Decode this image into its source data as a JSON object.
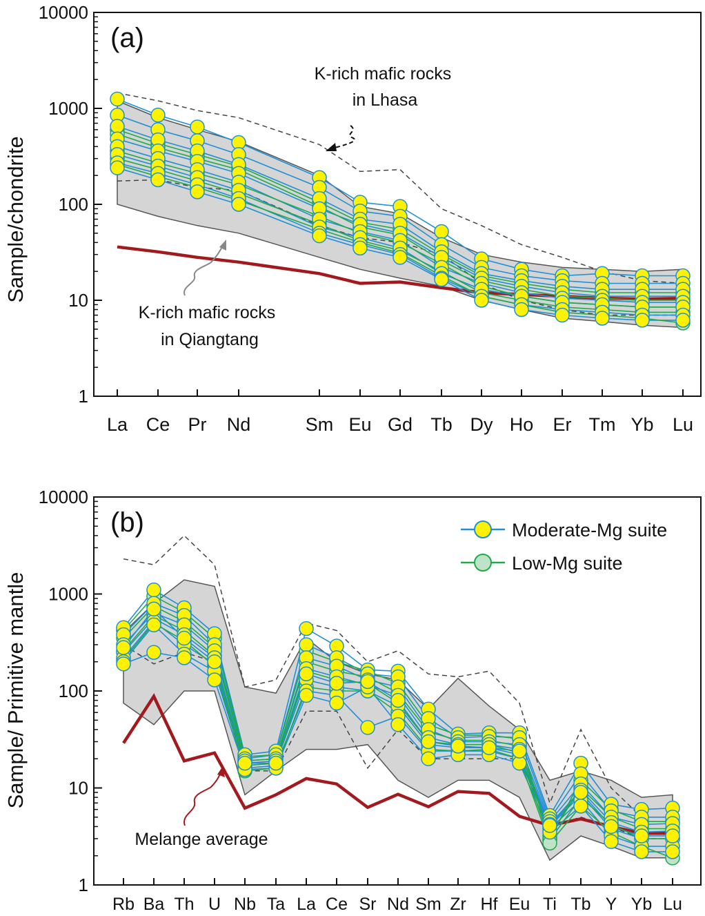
{
  "chart_data": [
    {
      "panel": "(a)",
      "type": "line",
      "scale": "log",
      "ylabel": "Sample/chondrite",
      "ylim": [
        1,
        10000
      ],
      "ytick_labels": [
        "1",
        "10",
        "100",
        "1000",
        "10000"
      ],
      "categories": [
        "La",
        "Ce",
        "Pr",
        "Nd",
        "Sm",
        "Eu",
        "Gd",
        "Tb",
        "Dy",
        "Ho",
        "Er",
        "Tm",
        "Yb",
        "Lu"
      ],
      "annotations": {
        "lhasa_line1": "K-rich mafic rocks",
        "lhasa_line2": "in Lhasa",
        "qiangtang_line1": "K-rich mafic rocks",
        "qiangtang_line2": "in Qiangtang"
      },
      "field_qiangtang": {
        "upper": [
          1200,
          800,
          600,
          450,
          200,
          95,
          80,
          45,
          30,
          25,
          22,
          21,
          20,
          21
        ],
        "lower": [
          100,
          75,
          60,
          50,
          28,
          21,
          17,
          14,
          10,
          8,
          6.5,
          6,
          5.5,
          5.2
        ]
      },
      "field_lhasa": {
        "upper": [
          1450,
          1200,
          950,
          800,
          420,
          220,
          230,
          90,
          60,
          38,
          28,
          20,
          16,
          15
        ],
        "lower": [
          175,
          180,
          150,
          140,
          60,
          45,
          40,
          30,
          15,
          10,
          8,
          7,
          7,
          7
        ]
      },
      "reference_line": [
        36,
        32,
        28,
        25,
        19,
        15,
        15.5,
        13.5,
        12,
        11.5,
        11,
        10.5,
        10.3,
        10.5
      ],
      "series": [
        {
          "suite": "Moderate-Mg",
          "values": [
            1250,
            850,
            640,
            440,
            190,
            105,
            95,
            52,
            27,
            21,
            18,
            19,
            18,
            18
          ]
        },
        {
          "suite": "Moderate-Mg",
          "values": [
            850,
            600,
            460,
            330,
            150,
            85,
            75,
            38,
            22,
            18,
            16,
            15,
            15,
            15
          ]
        },
        {
          "suite": "Moderate-Mg",
          "values": [
            650,
            470,
            360,
            260,
            115,
            70,
            62,
            32,
            19,
            16,
            14,
            13,
            13,
            13
          ]
        },
        {
          "suite": "Moderate-Mg",
          "values": [
            480,
            360,
            280,
            210,
            90,
            62,
            50,
            28,
            17,
            14,
            12,
            11,
            11,
            11
          ]
        },
        {
          "suite": "Moderate-Mg",
          "values": [
            400,
            300,
            230,
            170,
            70,
            52,
            42,
            22,
            15,
            12,
            10.5,
            10,
            9.5,
            9.5
          ]
        },
        {
          "suite": "Moderate-Mg",
          "values": [
            330,
            250,
            190,
            140,
            58,
            45,
            35,
            19,
            13,
            11,
            9.5,
            9,
            8.5,
            8.5
          ]
        },
        {
          "suite": "Moderate-Mg",
          "values": [
            270,
            210,
            160,
            115,
            50,
            38,
            30,
            17,
            11,
            9,
            8,
            7.5,
            7,
            7
          ]
        },
        {
          "suite": "Moderate-Mg",
          "values": [
            240,
            180,
            135,
            100,
            47,
            35,
            28,
            16.5,
            10,
            8,
            7,
            6.5,
            6.2,
            6.2
          ]
        },
        {
          "suite": "Low-Mg",
          "values": [
            600,
            430,
            330,
            250,
            105,
            65,
            55,
            30,
            18,
            15,
            13,
            12,
            12,
            12
          ]
        },
        {
          "suite": "Low-Mg",
          "values": [
            540,
            390,
            300,
            230,
            95,
            58,
            48,
            26,
            16,
            13,
            11,
            10.5,
            10,
            10
          ]
        },
        {
          "suite": "Low-Mg",
          "values": [
            360,
            270,
            210,
            160,
            75,
            50,
            40,
            24,
            14,
            11,
            9.5,
            9,
            8.5,
            8.5
          ]
        },
        {
          "suite": "Low-Mg",
          "values": [
            300,
            230,
            175,
            130,
            62,
            42,
            33,
            20,
            12,
            10,
            8.5,
            8,
            7.5,
            7.5
          ]
        },
        {
          "suite": "Low-Mg",
          "values": [
            260,
            195,
            150,
            110,
            55,
            40,
            31,
            18,
            11,
            9,
            7.5,
            7,
            6.5,
            5.8
          ]
        }
      ]
    },
    {
      "panel": "(b)",
      "type": "line",
      "scale": "log",
      "ylabel": "Sample/ Primitive mantle",
      "ylim": [
        1,
        10000
      ],
      "ytick_labels": [
        "1",
        "10",
        "100",
        "1000",
        "10000"
      ],
      "categories": [
        "Rb",
        "Ba",
        "Th",
        "U",
        "Nb",
        "Ta",
        "La",
        "Ce",
        "Sr",
        "Nd",
        "Sm",
        "Zr",
        "Hf",
        "Eu",
        "Ti",
        "Tb",
        "Y",
        "Yb",
        "Lu"
      ],
      "legend": [
        {
          "label": "Moderate-Mg suite",
          "line": "#1f8fd6",
          "fill": "#fff200",
          "edge": "#1f8fd6"
        },
        {
          "label": "Low-Mg suite",
          "line": "#1faa4a",
          "fill": "#bfe3c8",
          "edge": "#1faa4a"
        }
      ],
      "legend_position": "top-right",
      "annotations": {
        "melange": "Melange average"
      },
      "field_qiangtang": {
        "upper": [
          400,
          800,
          1400,
          1200,
          110,
          95,
          350,
          200,
          150,
          130,
          65,
          135,
          70,
          40,
          12,
          15,
          12,
          8,
          8.5
        ],
        "lower": [
          75,
          45,
          100,
          100,
          8.5,
          15,
          25,
          25,
          28,
          12,
          8,
          12,
          12,
          8,
          1.8,
          3.2,
          2.5,
          1.9,
          1.9
        ]
      },
      "field_lhasa": {
        "upper": [
          2300,
          2000,
          4000,
          2000,
          110,
          130,
          500,
          420,
          200,
          260,
          150,
          140,
          160,
          75,
          7,
          40,
          10,
          5,
          5
        ],
        "lower": [
          300,
          190,
          250,
          200,
          15,
          15,
          62,
          62,
          16,
          40,
          20,
          20,
          20,
          20,
          4,
          5,
          4,
          3,
          3
        ]
      },
      "reference_line": [
        29,
        88,
        19,
        23,
        6.2,
        8.5,
        12.5,
        11,
        6.3,
        8.6,
        6.4,
        9.2,
        8.8,
        5.1,
        4.1,
        4.8,
        4,
        3.4,
        3.4
      ],
      "series": [
        {
          "suite": "Moderate-Mg",
          "values": [
            450,
            1100,
            720,
            390,
            22,
            24,
            440,
            290,
            165,
            160,
            65,
            36,
            37,
            37,
            5.2,
            18,
            6.8,
            6,
            6.2
          ]
        },
        {
          "suite": "Moderate-Mg",
          "values": [
            380,
            800,
            600,
            300,
            20,
            22,
            300,
            220,
            150,
            140,
            52,
            33,
            34,
            33,
            4.8,
            14,
            5.8,
            5,
            5
          ]
        },
        {
          "suite": "Moderate-Mg",
          "values": [
            300,
            640,
            480,
            260,
            19,
            20,
            220,
            180,
            130,
            110,
            40,
            30,
            30,
            28,
            4.5,
            11,
            5,
            4.2,
            4.3
          ]
        },
        {
          "suite": "Moderate-Mg",
          "values": [
            250,
            560,
            380,
            220,
            18,
            19,
            170,
            140,
            115,
            90,
            33,
            28,
            28,
            25,
            4.2,
            9.5,
            4.4,
            3.5,
            3.6
          ]
        },
        {
          "suite": "Moderate-Mg",
          "values": [
            220,
            520,
            300,
            190,
            17,
            18,
            130,
            110,
            100,
            70,
            28,
            26,
            26,
            22,
            4,
            8.5,
            3.8,
            3,
            3
          ]
        },
        {
          "suite": "Moderate-Mg",
          "values": [
            200,
            480,
            240,
            160,
            16,
            17,
            100,
            90,
            42,
            55,
            24,
            24,
            24,
            20,
            3.8,
            7.5,
            3.2,
            2.5,
            2.5
          ]
        },
        {
          "suite": "Moderate-Mg",
          "values": [
            190,
            250,
            220,
            130,
            15.5,
            16,
            90,
            75,
            110,
            45,
            20,
            22,
            22,
            18,
            3.5,
            6.5,
            2.8,
            2.2,
            2.2
          ]
        },
        {
          "suite": "Moderate-Mg",
          "values": [
            280,
            700,
            350,
            200,
            18,
            18,
            150,
            120,
            125,
            80,
            30,
            27,
            26,
            24,
            4.1,
            9,
            4,
            3.2,
            3.2
          ]
        },
        {
          "suite": "Low-Mg",
          "values": [
            420,
            950,
            650,
            350,
            21,
            22,
            260,
            200,
            160,
            120,
            45,
            35,
            35,
            32,
            3,
            12,
            6,
            4.5,
            4.5
          ]
        },
        {
          "suite": "Low-Mg",
          "values": [
            350,
            750,
            520,
            280,
            19,
            20,
            200,
            160,
            140,
            95,
            38,
            31,
            31,
            27,
            3.2,
            10,
            5,
            3.8,
            3.8
          ]
        },
        {
          "suite": "Low-Mg",
          "values": [
            260,
            600,
            420,
            230,
            17,
            18,
            160,
            130,
            120,
            75,
            30,
            28,
            28,
            23,
            2.9,
            8,
            4.2,
            3,
            3
          ]
        },
        {
          "suite": "Low-Mg",
          "values": [
            210,
            500,
            330,
            180,
            15,
            16,
            110,
            100,
            100,
            60,
            25,
            24,
            25,
            20,
            2.7,
            6.5,
            3.5,
            2.5,
            1.9
          ]
        }
      ]
    }
  ]
}
